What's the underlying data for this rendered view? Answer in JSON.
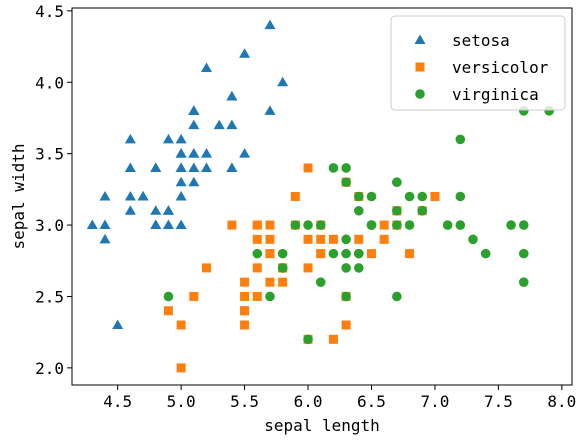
{
  "chart_data": {
    "type": "scatter",
    "xlabel": "sepal length",
    "ylabel": "sepal width",
    "xlim": [
      4.14,
      8.08
    ],
    "ylim": [
      1.88,
      4.52
    ],
    "x_ticks": [
      4.5,
      5.0,
      5.5,
      6.0,
      6.5,
      7.0,
      7.5,
      8.0
    ],
    "x_tick_labels": [
      "4.5",
      "5.0",
      "5.5",
      "6.0",
      "6.5",
      "7.0",
      "7.5",
      "8.0"
    ],
    "y_ticks": [
      2.0,
      2.5,
      3.0,
      3.5,
      4.0,
      4.5
    ],
    "y_tick_labels": [
      "2.0",
      "2.5",
      "3.0",
      "3.5",
      "4.0",
      "4.5"
    ],
    "grid": false,
    "legend_position": "top-right",
    "series": [
      {
        "name": "setosa",
        "marker": "triangle",
        "color": "#1f77b4",
        "points": [
          [
            5.1,
            3.5
          ],
          [
            4.9,
            3.0
          ],
          [
            4.7,
            3.2
          ],
          [
            4.6,
            3.1
          ],
          [
            5.0,
            3.6
          ],
          [
            5.4,
            3.9
          ],
          [
            4.6,
            3.4
          ],
          [
            5.0,
            3.4
          ],
          [
            4.4,
            2.9
          ],
          [
            4.9,
            3.1
          ],
          [
            5.4,
            3.7
          ],
          [
            4.8,
            3.4
          ],
          [
            4.8,
            3.0
          ],
          [
            4.3,
            3.0
          ],
          [
            5.8,
            4.0
          ],
          [
            5.7,
            4.4
          ],
          [
            5.4,
            3.9
          ],
          [
            5.1,
            3.5
          ],
          [
            5.7,
            3.8
          ],
          [
            5.1,
            3.8
          ],
          [
            5.4,
            3.4
          ],
          [
            5.1,
            3.7
          ],
          [
            4.6,
            3.6
          ],
          [
            5.1,
            3.3
          ],
          [
            4.8,
            3.4
          ],
          [
            5.0,
            3.0
          ],
          [
            5.0,
            3.4
          ],
          [
            5.2,
            3.5
          ],
          [
            5.2,
            3.4
          ],
          [
            4.7,
            3.2
          ],
          [
            4.8,
            3.1
          ],
          [
            5.4,
            3.4
          ],
          [
            5.2,
            4.1
          ],
          [
            5.5,
            4.2
          ],
          [
            4.9,
            3.1
          ],
          [
            5.0,
            3.2
          ],
          [
            5.5,
            3.5
          ],
          [
            4.9,
            3.6
          ],
          [
            4.4,
            3.0
          ],
          [
            5.1,
            3.4
          ],
          [
            5.0,
            3.5
          ],
          [
            4.5,
            2.3
          ],
          [
            4.4,
            3.2
          ],
          [
            5.0,
            3.5
          ],
          [
            5.1,
            3.8
          ],
          [
            4.8,
            3.0
          ],
          [
            5.1,
            3.8
          ],
          [
            4.6,
            3.2
          ],
          [
            5.3,
            3.7
          ],
          [
            5.0,
            3.3
          ]
        ]
      },
      {
        "name": "versicolor",
        "marker": "square",
        "color": "#ff7f0e",
        "points": [
          [
            7.0,
            3.2
          ],
          [
            6.4,
            3.2
          ],
          [
            6.9,
            3.1
          ],
          [
            5.5,
            2.3
          ],
          [
            6.5,
            2.8
          ],
          [
            5.7,
            2.8
          ],
          [
            6.3,
            3.3
          ],
          [
            4.9,
            2.4
          ],
          [
            6.6,
            2.9
          ],
          [
            5.2,
            2.7
          ],
          [
            5.0,
            2.0
          ],
          [
            5.9,
            3.0
          ],
          [
            6.0,
            2.2
          ],
          [
            6.1,
            2.9
          ],
          [
            5.6,
            2.9
          ],
          [
            6.7,
            3.1
          ],
          [
            5.6,
            3.0
          ],
          [
            5.8,
            2.7
          ],
          [
            6.2,
            2.2
          ],
          [
            5.6,
            2.5
          ],
          [
            5.9,
            3.2
          ],
          [
            6.1,
            2.8
          ],
          [
            6.3,
            2.5
          ],
          [
            6.1,
            2.8
          ],
          [
            6.4,
            2.9
          ],
          [
            6.6,
            3.0
          ],
          [
            6.8,
            2.8
          ],
          [
            6.7,
            3.0
          ],
          [
            6.0,
            2.9
          ],
          [
            5.7,
            2.6
          ],
          [
            5.5,
            2.4
          ],
          [
            5.5,
            2.4
          ],
          [
            5.8,
            2.7
          ],
          [
            6.0,
            2.7
          ],
          [
            5.4,
            3.0
          ],
          [
            6.0,
            3.4
          ],
          [
            6.7,
            3.1
          ],
          [
            6.3,
            2.3
          ],
          [
            5.6,
            3.0
          ],
          [
            5.5,
            2.5
          ],
          [
            5.5,
            2.6
          ],
          [
            6.1,
            3.0
          ],
          [
            5.8,
            2.6
          ],
          [
            5.0,
            2.3
          ],
          [
            5.6,
            2.7
          ],
          [
            5.7,
            3.0
          ],
          [
            5.7,
            2.9
          ],
          [
            6.2,
            2.9
          ],
          [
            5.1,
            2.5
          ],
          [
            5.7,
            2.8
          ]
        ]
      },
      {
        "name": "virginica",
        "marker": "circle",
        "color": "#2ca02c",
        "points": [
          [
            6.3,
            3.3
          ],
          [
            5.8,
            2.7
          ],
          [
            7.1,
            3.0
          ],
          [
            6.3,
            2.9
          ],
          [
            6.5,
            3.0
          ],
          [
            7.6,
            3.0
          ],
          [
            4.9,
            2.5
          ],
          [
            7.3,
            2.9
          ],
          [
            6.7,
            2.5
          ],
          [
            7.2,
            3.6
          ],
          [
            6.5,
            3.2
          ],
          [
            6.4,
            2.7
          ],
          [
            6.8,
            3.0
          ],
          [
            5.7,
            2.5
          ],
          [
            5.8,
            2.8
          ],
          [
            6.4,
            3.2
          ],
          [
            6.5,
            3.0
          ],
          [
            7.7,
            3.8
          ],
          [
            7.7,
            2.6
          ],
          [
            6.0,
            2.2
          ],
          [
            6.9,
            3.2
          ],
          [
            5.6,
            2.8
          ],
          [
            7.7,
            2.8
          ],
          [
            6.3,
            2.7
          ],
          [
            6.7,
            3.3
          ],
          [
            7.2,
            3.2
          ],
          [
            6.2,
            2.8
          ],
          [
            6.1,
            3.0
          ],
          [
            6.4,
            2.8
          ],
          [
            7.2,
            3.0
          ],
          [
            7.4,
            2.8
          ],
          [
            7.9,
            3.8
          ],
          [
            6.4,
            2.8
          ],
          [
            6.3,
            2.8
          ],
          [
            6.1,
            2.6
          ],
          [
            7.7,
            3.0
          ],
          [
            6.3,
            3.4
          ],
          [
            6.4,
            3.1
          ],
          [
            6.0,
            3.0
          ],
          [
            6.9,
            3.1
          ],
          [
            6.7,
            3.1
          ],
          [
            6.9,
            3.1
          ],
          [
            5.8,
            2.7
          ],
          [
            6.8,
            3.2
          ],
          [
            6.7,
            3.3
          ],
          [
            6.7,
            3.0
          ],
          [
            6.3,
            2.5
          ],
          [
            6.5,
            3.0
          ],
          [
            6.2,
            3.4
          ],
          [
            5.9,
            3.0
          ]
        ]
      }
    ]
  }
}
